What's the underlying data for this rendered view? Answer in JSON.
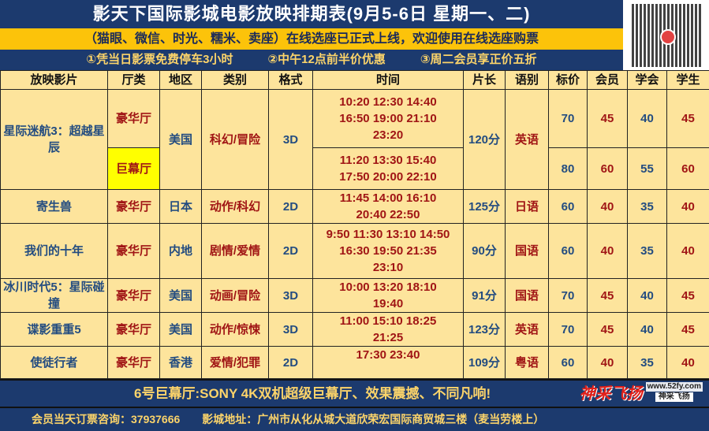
{
  "title": "影天下国际影城电影放映排期表(9月5-6日 星期一、二)",
  "notice": "（猫眼、微信、时光、糯米、卖座）在线选座已正式上线，欢迎使用在线选座购票",
  "info": [
    "①凭当日影票免费停车3小时",
    "②中午12点前半价优惠",
    "③周二会员享正价五折"
  ],
  "headers": [
    "放映影片",
    "厅类",
    "地区",
    "类别",
    "格式",
    "时间",
    "片长",
    "语别",
    "标价",
    "会员",
    "学会",
    "学生"
  ],
  "movies": [
    {
      "name": "星际迷航3：超越星辰",
      "region": "美国",
      "genre": "科幻/冒险",
      "format": "3D",
      "length": "120分",
      "lang": "英语",
      "halls": [
        {
          "hall": "豪华厅",
          "times": "10:20 12:30 14:40 16:50 19:00 21:10 23:20",
          "price": "70",
          "member": "45",
          "p3": "40",
          "student": "45"
        },
        {
          "hall": "巨幕厅",
          "times": "11:20 13:30 15:40 17:50 20:00 22:10",
          "price": "80",
          "member": "60",
          "p3": "55",
          "student": "60"
        }
      ]
    },
    {
      "name": "寄生兽",
      "hall": "豪华厅",
      "region": "日本",
      "genre": "动作/科幻",
      "format": "2D",
      "times": "11:45 14:00 16:10 20:40 22:50",
      "length": "125分",
      "lang": "日语",
      "price": "60",
      "member": "40",
      "p3": "35",
      "student": "40"
    },
    {
      "name": "我们的十年",
      "hall": "豪华厅",
      "region": "内地",
      "genre": "剧情/爱情",
      "format": "2D",
      "times": "9:50 11:30 13:10 14:50 16:30 19:50 21:35 23:10",
      "length": "90分",
      "lang": "国语",
      "price": "60",
      "member": "40",
      "p3": "35",
      "student": "40"
    },
    {
      "name": "冰川时代5：星际碰撞",
      "hall": "豪华厅",
      "region": "美国",
      "genre": "动画/冒险",
      "format": "3D",
      "times": "10:00 13:20 18:10 19:40",
      "length": "91分",
      "lang": "国语",
      "price": "70",
      "member": "45",
      "p3": "40",
      "student": "45"
    },
    {
      "name": "谍影重重5",
      "hall": "豪华厅",
      "region": "美国",
      "genre": "动作/惊悚",
      "format": "3D",
      "times": "11:00 15:10 18:25 21:25",
      "length": "123分",
      "lang": "英语",
      "price": "70",
      "member": "45",
      "p3": "40",
      "student": "45"
    },
    {
      "name": "使徒行者",
      "hall": "豪华厅",
      "region": "香港",
      "genre": "爱情/犯罪",
      "format": "2D",
      "times": "17:30 23:40",
      "length": "109分",
      "lang": "粤语",
      "price": "60",
      "member": "40",
      "p3": "35",
      "student": "40"
    }
  ],
  "footer": {
    "imax": "6号巨幕厅:SONY 4K双机超级巨幕厅、效果震撼、不同凡响!",
    "contact": "会员当天订票咨询：37937666　　影城地址：广州市从化从城大道欣荣宏国际商贸城三楼（麦当劳楼上）"
  },
  "logo": {
    "main": "神采飞扬",
    "url": "www.52fy.com",
    "sub": "神采飞扬"
  },
  "colors": {
    "navy": "#1c3a6e",
    "yellow_band": "#fcc30a",
    "table_bg": "#fde49c",
    "blue_text": "#234c80",
    "red_text": "#a01515",
    "highlight": "#ffff00"
  }
}
